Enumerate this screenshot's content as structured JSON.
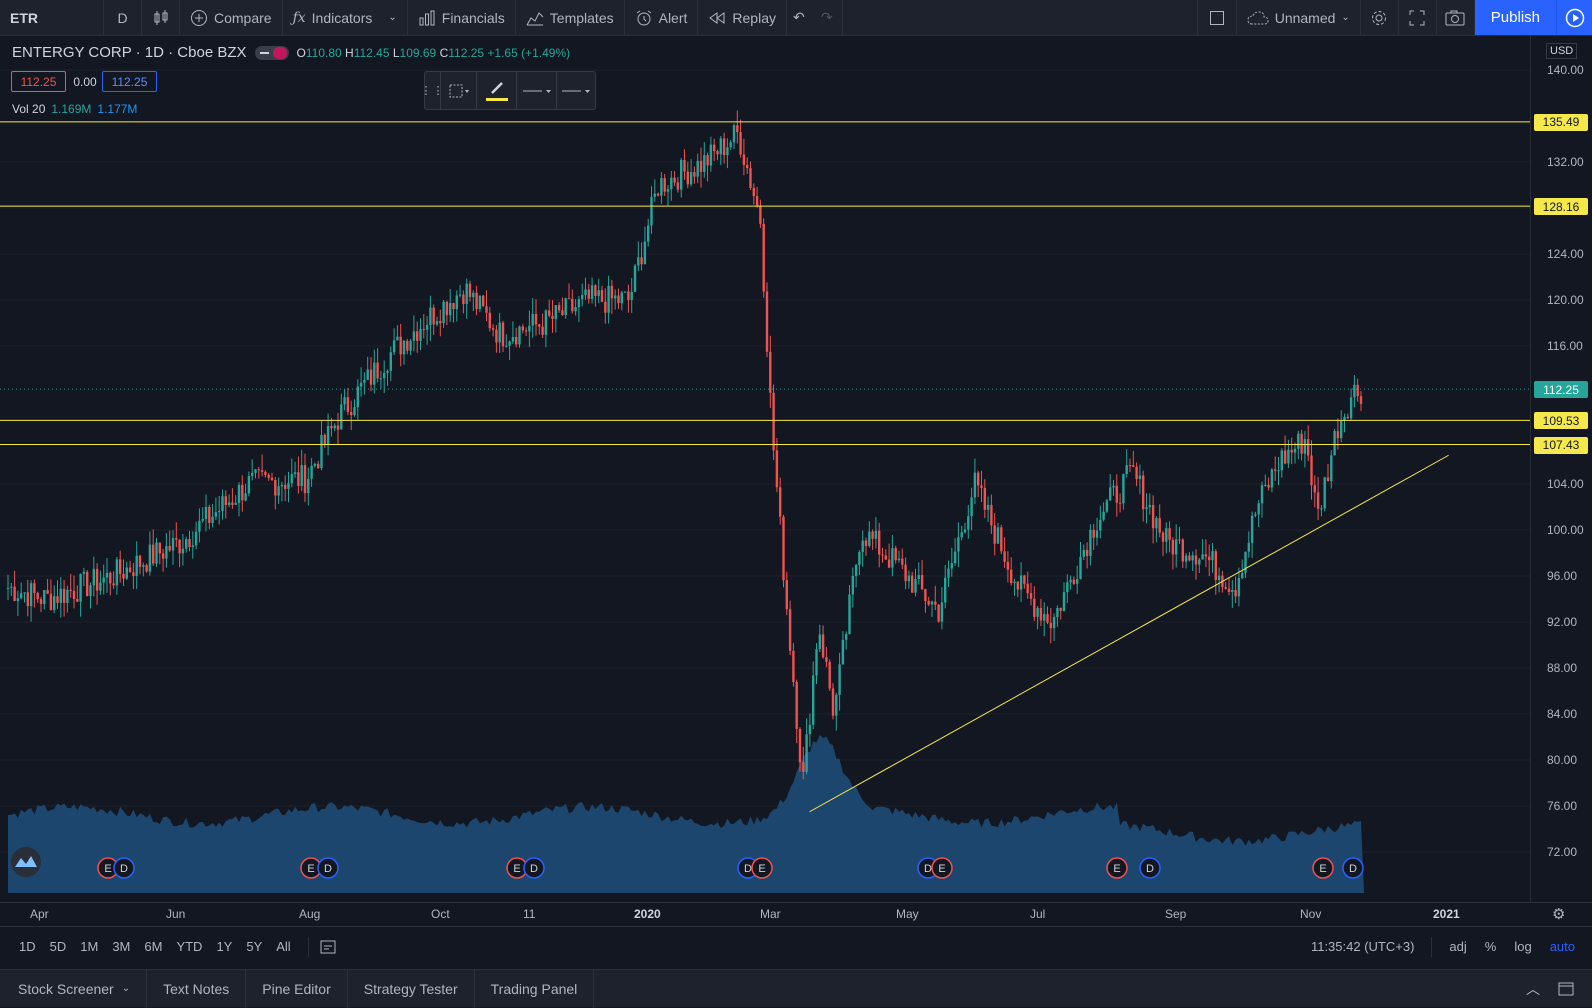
{
  "toolbar": {
    "symbol": "ETR",
    "interval": "D",
    "compare": "Compare",
    "indicators": "Indicators",
    "financials": "Financials",
    "templates": "Templates",
    "alert": "Alert",
    "replay": "Replay",
    "layout_name": "Unnamed",
    "publish": "Publish"
  },
  "legend": {
    "title": "ENTERGY CORP · 1D · Cboe BZX",
    "o_label": "O",
    "o": "110.80",
    "h_label": "H",
    "h": "112.45",
    "l_label": "L",
    "l": "109.69",
    "c_label": "C",
    "c": "112.25",
    "change": "+1.65 (+1.49%)",
    "bid": "112.25",
    "spread": "0.00",
    "ask": "112.25",
    "vol_label": "Vol 20",
    "vol_value": "1.169M",
    "vol_ma": "1.177M"
  },
  "price_axis": {
    "currency": "USD",
    "ticks": [
      "140.00",
      "132.00",
      "128.00",
      "124.00",
      "120.00",
      "116.00",
      "104.00",
      "100.00",
      "96.00",
      "92.00",
      "88.00",
      "84.00",
      "80.00",
      "76.00",
      "72.00"
    ]
  },
  "time_axis": [
    "Apr",
    "Jun",
    "Aug",
    "Oct",
    "11",
    "2020",
    "Mar",
    "May",
    "Jul",
    "Sep",
    "Nov",
    "2021"
  ],
  "range_bar": {
    "ranges": [
      "1D",
      "5D",
      "1M",
      "3M",
      "6M",
      "YTD",
      "1Y",
      "5Y",
      "All"
    ],
    "clock": "11:35:42 (UTC+3)",
    "adj": "adj",
    "pct": "%",
    "log": "log",
    "auto": "auto"
  },
  "bottom_tabs": [
    "Stock Screener",
    "Text Notes",
    "Pine Editor",
    "Strategy Tester",
    "Trading Panel"
  ],
  "colors": {
    "up": "#26a69a",
    "down": "#ef5350",
    "hline": "#f5e84b",
    "volume": "#1f4f7a",
    "accent": "#2962ff"
  },
  "chart_data": {
    "type": "candlestick",
    "ylim": [
      70,
      142
    ],
    "horizontal_levels": [
      "135.49",
      "128.16",
      "109.53",
      "107.43"
    ],
    "current_price": "112.25",
    "trendline": {
      "from": {
        "date": "2020-03-23",
        "price": 75.5
      },
      "to": {
        "date": "2021-01-04",
        "price": 106.5
      }
    },
    "series": [
      {
        "date": "2019-03-29",
        "close": 95
      },
      {
        "date": "2019-04-15",
        "close": 94
      },
      {
        "date": "2019-05-15",
        "close": 96
      },
      {
        "date": "2019-06-15",
        "close": 99
      },
      {
        "date": "2019-07-15",
        "close": 104
      },
      {
        "date": "2019-08-10",
        "close": 104.5
      },
      {
        "date": "2019-08-25",
        "close": 110
      },
      {
        "date": "2019-09-15",
        "close": 115
      },
      {
        "date": "2019-10-01",
        "close": 118
      },
      {
        "date": "2019-10-20",
        "close": 121
      },
      {
        "date": "2019-11-05",
        "close": 117
      },
      {
        "date": "2019-11-25",
        "close": 118
      },
      {
        "date": "2019-12-15",
        "close": 120
      },
      {
        "date": "2020-01-02",
        "close": 120
      },
      {
        "date": "2020-01-15",
        "close": 130
      },
      {
        "date": "2020-02-05",
        "close": 132
      },
      {
        "date": "2020-02-20",
        "close": 134.5
      },
      {
        "date": "2020-03-01",
        "close": 127
      },
      {
        "date": "2020-03-06",
        "close": 109
      },
      {
        "date": "2020-03-12",
        "close": 95
      },
      {
        "date": "2020-03-20",
        "close": 78
      },
      {
        "date": "2020-03-27",
        "close": 92
      },
      {
        "date": "2020-04-03",
        "close": 84
      },
      {
        "date": "2020-04-15",
        "close": 100
      },
      {
        "date": "2020-05-01",
        "close": 97
      },
      {
        "date": "2020-05-20",
        "close": 93
      },
      {
        "date": "2020-06-05",
        "close": 104
      },
      {
        "date": "2020-06-25",
        "close": 95
      },
      {
        "date": "2020-07-10",
        "close": 92
      },
      {
        "date": "2020-07-30",
        "close": 101
      },
      {
        "date": "2020-08-15",
        "close": 105
      },
      {
        "date": "2020-08-30",
        "close": 99
      },
      {
        "date": "2020-09-15",
        "close": 98
      },
      {
        "date": "2020-09-30",
        "close": 95
      },
      {
        "date": "2020-10-10",
        "close": 102
      },
      {
        "date": "2020-10-20",
        "close": 106
      },
      {
        "date": "2020-11-01",
        "close": 108
      },
      {
        "date": "2020-11-06",
        "close": 101
      },
      {
        "date": "2020-11-15",
        "close": 109
      },
      {
        "date": "2020-11-22",
        "close": 112
      },
      {
        "date": "2020-11-27",
        "close": 112.25
      }
    ]
  }
}
